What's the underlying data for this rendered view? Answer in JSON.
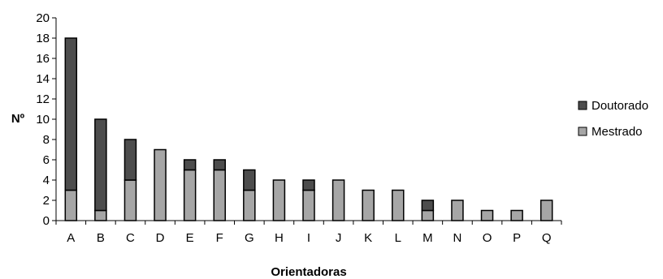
{
  "chart_data": {
    "type": "bar",
    "stacked": true,
    "categories": [
      "A",
      "B",
      "C",
      "D",
      "E",
      "F",
      "G",
      "H",
      "I",
      "J",
      "K",
      "L",
      "M",
      "N",
      "O",
      "P",
      "Q"
    ],
    "series": [
      {
        "name": "Mestrado",
        "color": "#a6a6a6",
        "values": [
          3,
          1,
          4,
          7,
          5,
          5,
          3,
          4,
          3,
          4,
          3,
          3,
          1,
          2,
          1,
          1,
          2
        ]
      },
      {
        "name": "Doutorado",
        "color": "#4d4d4d",
        "values": [
          15,
          9,
          4,
          0,
          1,
          1,
          2,
          0,
          1,
          0,
          0,
          0,
          1,
          0,
          0,
          0,
          0
        ]
      }
    ],
    "legend_order": [
      "Doutorado",
      "Mestrado"
    ],
    "title": "",
    "xlabel": "Orientadoras",
    "ylabel": "Nº",
    "ylim": [
      0,
      20
    ],
    "yticks": [
      0,
      2,
      4,
      6,
      8,
      10,
      12,
      14,
      16,
      18,
      20
    ],
    "grid": false,
    "legend_position": "right"
  }
}
